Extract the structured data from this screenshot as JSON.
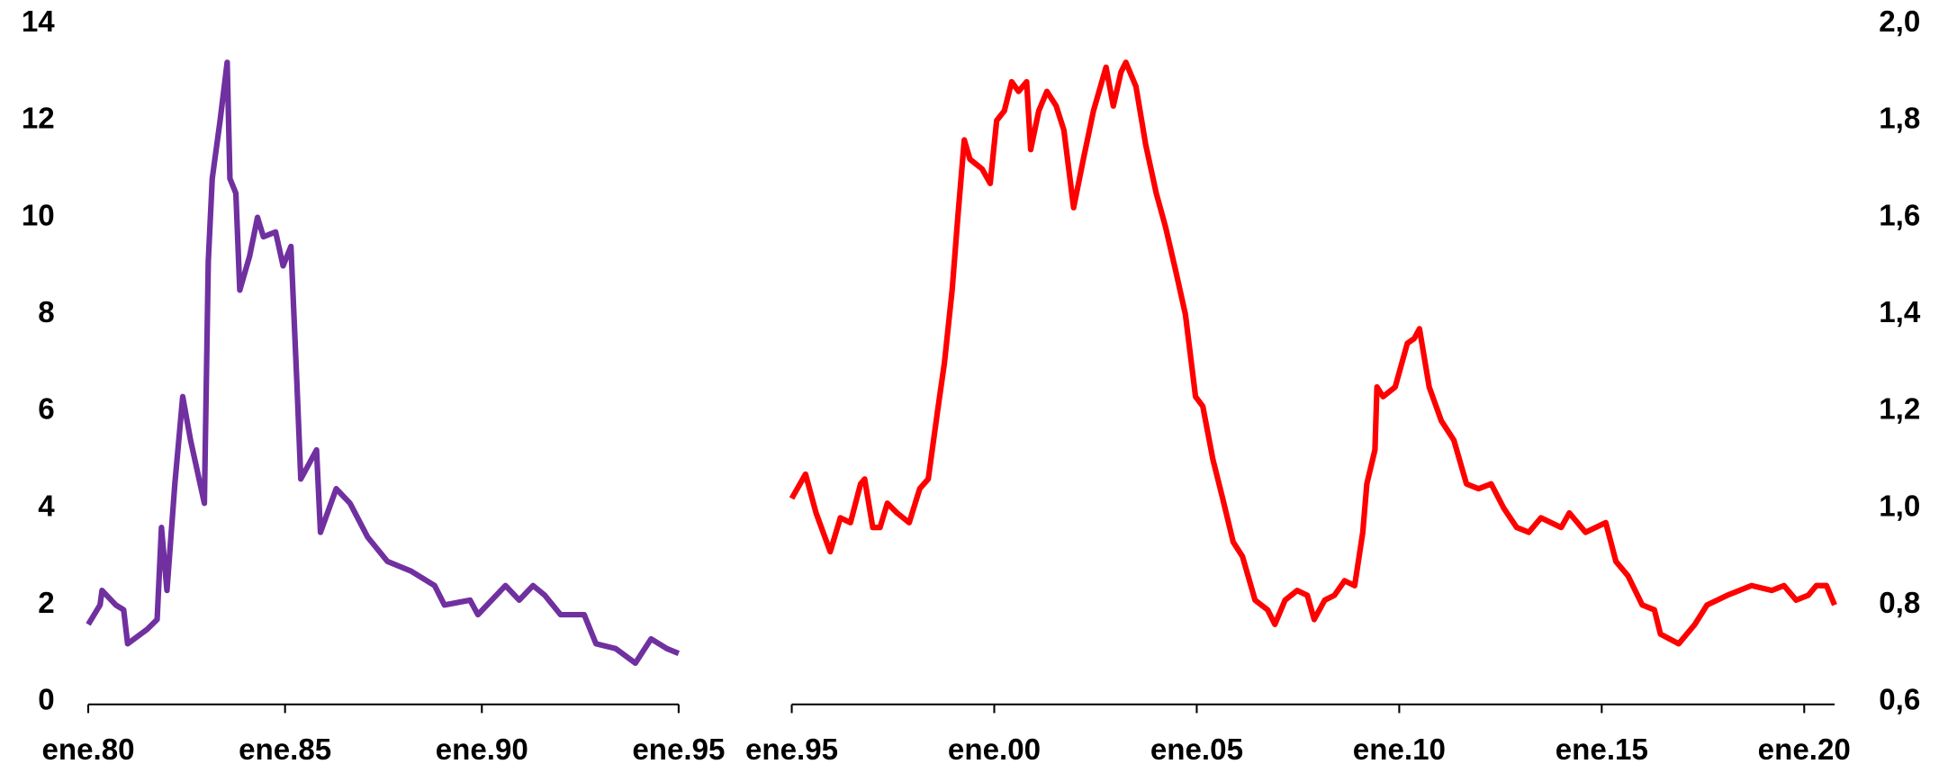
{
  "chart_data": [
    {
      "type": "line",
      "yaxis_position": "left",
      "xlim": [
        1980,
        1995
      ],
      "ylim": [
        0,
        14
      ],
      "xticks": [
        {
          "value": 1980,
          "label": "ene.80"
        },
        {
          "value": 1985,
          "label": "ene.85"
        },
        {
          "value": 1990,
          "label": "ene.90"
        },
        {
          "value": 1995,
          "label": "ene.95"
        }
      ],
      "yticks": [
        0,
        2,
        4,
        6,
        8,
        10,
        12,
        14
      ],
      "x": [
        1980,
        1980.3,
        1980.35,
        1980.7,
        1980.9,
        1981,
        1981.5,
        1981.75,
        1981.86,
        1982,
        1982.2,
        1982.4,
        1982.6,
        1982.95,
        1983.05,
        1983.15,
        1983.35,
        1983.53,
        1983.6,
        1983.75,
        1983.85,
        1984.1,
        1984.3,
        1984.45,
        1984.76,
        1984.95,
        1985.15,
        1985.3,
        1985.4,
        1985.8,
        1985.9,
        1986.3,
        1986.65,
        1987.1,
        1987.6,
        1988.2,
        1988.8,
        1989.05,
        1989.7,
        1989.9,
        1990.6,
        1990.95,
        1991.3,
        1991.6,
        1992,
        1992.6,
        1992.9,
        1993.4,
        1993.9,
        1994.3,
        1994.7,
        1995
      ],
      "series": [
        {
          "color": "#7030a0",
          "values": [
            1.6,
            2.0,
            2.3,
            2.0,
            1.9,
            1.2,
            1.5,
            1.7,
            3.6,
            2.3,
            4.5,
            6.3,
            5.4,
            4.1,
            9.1,
            10.8,
            12.0,
            13.2,
            10.8,
            10.5,
            8.5,
            9.2,
            10.0,
            9.6,
            9.7,
            9.0,
            9.4,
            6.6,
            4.6,
            5.2,
            3.5,
            4.4,
            4.1,
            3.4,
            2.9,
            2.7,
            2.4,
            2.0,
            2.1,
            1.8,
            2.4,
            2.1,
            2.4,
            2.2,
            1.8,
            1.8,
            1.2,
            1.1,
            0.8,
            1.3,
            1.1,
            1.0
          ]
        }
      ]
    },
    {
      "type": "line",
      "yaxis_position": "right",
      "xlim": [
        1995,
        2020.75
      ],
      "ylim": [
        0.6,
        2.0
      ],
      "xticks": [
        {
          "value": 1995,
          "label": "ene.95"
        },
        {
          "value": 2000,
          "label": "ene.00"
        },
        {
          "value": 2005,
          "label": "ene.05"
        },
        {
          "value": 2010,
          "label": "ene.10"
        },
        {
          "value": 2015,
          "label": "ene.15"
        },
        {
          "value": 2020,
          "label": "ene.20"
        }
      ],
      "yticks": [
        {
          "value": 0.6,
          "label": "0,6"
        },
        {
          "value": 0.8,
          "label": "0,8"
        },
        {
          "value": 1.0,
          "label": "1,0"
        },
        {
          "value": 1.2,
          "label": "1,2"
        },
        {
          "value": 1.4,
          "label": "1,4"
        },
        {
          "value": 1.6,
          "label": "1,6"
        },
        {
          "value": 1.8,
          "label": "1,8"
        },
        {
          "value": 2.0,
          "label": "2,0"
        }
      ],
      "x": [
        1995,
        1995.34,
        1995.6,
        1995.95,
        1996.2,
        1996.45,
        1996.7,
        1996.8,
        1997,
        1997.18,
        1997.36,
        1997.6,
        1997.9,
        1998.16,
        1998.37,
        1998.6,
        1998.77,
        1998.96,
        1999.1,
        1999.26,
        1999.4,
        1999.7,
        1999.9,
        2000.06,
        2000.25,
        2000.43,
        2000.6,
        2000.8,
        2000.9,
        2001.1,
        2001.3,
        2001.53,
        2001.72,
        2001.96,
        2002.2,
        2002.45,
        2002.76,
        2002.94,
        2003.13,
        2003.25,
        2003.5,
        2003.74,
        2004,
        2004.23,
        2004.48,
        2004.72,
        2004.97,
        2005.15,
        2005.4,
        2005.64,
        2005.9,
        2006.13,
        2006.44,
        2006.75,
        2006.93,
        2007.18,
        2007.48,
        2007.73,
        2007.9,
        2008.16,
        2008.4,
        2008.65,
        2008.9,
        2009.1,
        2009.2,
        2009.4,
        2009.45,
        2009.6,
        2009.9,
        2010,
        2010.2,
        2010.37,
        2010.5,
        2010.74,
        2011.04,
        2011.35,
        2011.66,
        2011.96,
        2012.27,
        2012.58,
        2012.9,
        2013.2,
        2013.5,
        2014,
        2014.2,
        2014.6,
        2015.1,
        2015.35,
        2015.65,
        2016,
        2016.3,
        2016.45,
        2016.9,
        2017.3,
        2017.6,
        2018.1,
        2018.7,
        2019.2,
        2019.5,
        2019.8,
        2020.1,
        2020.3,
        2020.55,
        2020.75
      ],
      "series": [
        {
          "color": "#ff0000",
          "values": [
            1.02,
            1.07,
            0.99,
            0.91,
            0.98,
            0.97,
            1.05,
            1.06,
            0.96,
            0.96,
            1.01,
            0.99,
            0.97,
            1.04,
            1.06,
            1.2,
            1.3,
            1.45,
            1.6,
            1.76,
            1.72,
            1.7,
            1.67,
            1.8,
            1.82,
            1.88,
            1.86,
            1.88,
            1.74,
            1.82,
            1.86,
            1.83,
            1.78,
            1.62,
            1.72,
            1.82,
            1.91,
            1.83,
            1.9,
            1.92,
            1.87,
            1.75,
            1.65,
            1.58,
            1.49,
            1.4,
            1.23,
            1.21,
            1.1,
            1.02,
            0.93,
            0.9,
            0.81,
            0.79,
            0.76,
            0.81,
            0.83,
            0.82,
            0.77,
            0.81,
            0.82,
            0.85,
            0.84,
            0.95,
            1.05,
            1.12,
            1.25,
            1.23,
            1.25,
            1.28,
            1.34,
            1.35,
            1.37,
            1.25,
            1.18,
            1.14,
            1.05,
            1.04,
            1.05,
            1.0,
            0.96,
            0.95,
            0.98,
            0.96,
            0.99,
            0.95,
            0.97,
            0.89,
            0.86,
            0.8,
            0.79,
            0.74,
            0.72,
            0.76,
            0.8,
            0.82,
            0.84,
            0.83,
            0.84,
            0.81,
            0.82,
            0.84,
            0.84,
            0.8
          ]
        }
      ]
    }
  ]
}
